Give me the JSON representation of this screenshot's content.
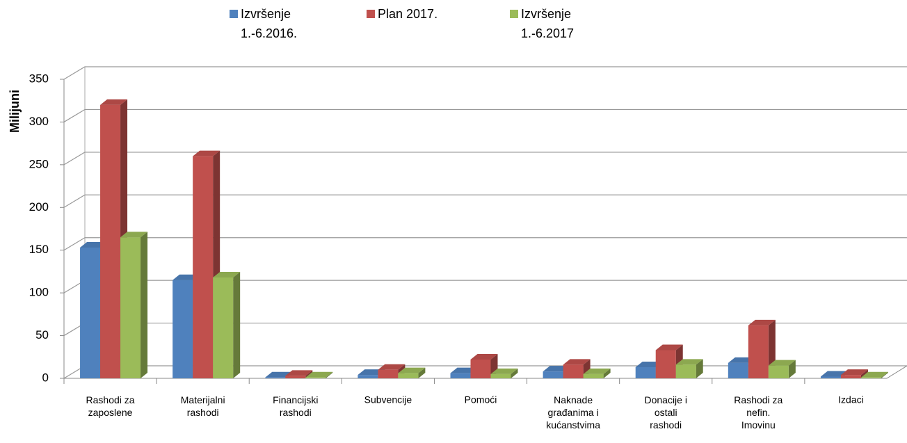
{
  "chart_data": {
    "type": "bar3d",
    "y_label": "Milijuni",
    "categories": [
      "Rashodi za\nzaposlene",
      "Materijalni\nrashodi",
      "Financijski\nrashodi",
      "Subvencije",
      "Pomoći",
      "Naknade\ngrađanima i\nkućanstvima",
      "Donacije i\nostali\nrashodi",
      "Rashodi za\nnefin.\nImovinu",
      "Izdaci"
    ],
    "series": [
      {
        "name": "Izvršenje\n1.-6.2016.",
        "color": "#4f81bd",
        "values": [
          153,
          115,
          1,
          4,
          6,
          8,
          13,
          18,
          2
        ]
      },
      {
        "name": "Plan 2017.",
        "color": "#c0504d",
        "values": [
          320,
          260,
          3,
          10,
          22,
          16,
          33,
          62,
          4
        ]
      },
      {
        "name": "Izvršenje\n1.-6.2017",
        "color": "#9bbb59",
        "values": [
          165,
          118,
          1,
          6,
          5,
          5,
          16,
          15,
          1
        ]
      }
    ],
    "ylim": [
      0,
      350
    ],
    "yticks": [
      0,
      50,
      100,
      150,
      200,
      250,
      300,
      350
    ],
    "grid": true,
    "legend": "top"
  }
}
